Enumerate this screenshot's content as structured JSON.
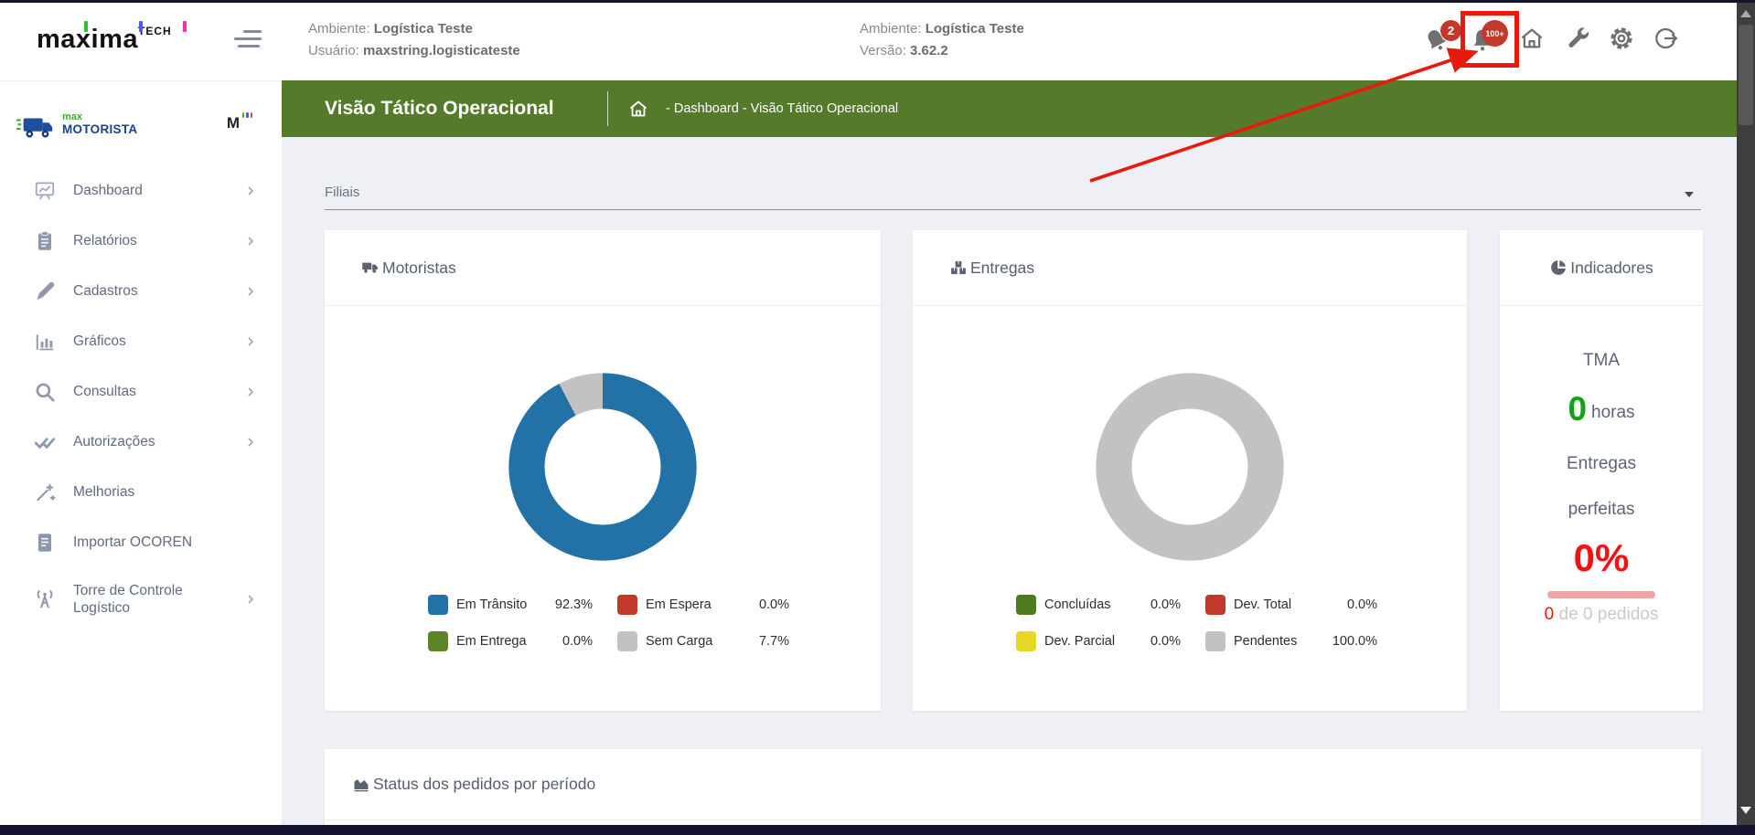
{
  "header": {
    "logo_text": "maxima",
    "logo_suffix": "TECH",
    "info_left": {
      "l1_label": "Ambiente:",
      "l1_value": "Logística Teste",
      "l2_label": "Usuário:",
      "l2_value": "maxstring.logisticateste"
    },
    "info_center": {
      "l1_label": "Ambiente:",
      "l1_value": "Logística Teste",
      "l2_label": "Versão:",
      "l2_value": "3.62.2"
    },
    "badge_bell1": "2",
    "badge_bell2": "100+"
  },
  "sidebar": {
    "brand_prefix": "max",
    "brand_name": "MOTORISTA",
    "brand_mini": "M",
    "items": [
      {
        "label": "Dashboard",
        "icon": "presentation-chart-icon",
        "chevron": true
      },
      {
        "label": "Relatórios",
        "icon": "clipboard-icon",
        "chevron": true
      },
      {
        "label": "Cadastros",
        "icon": "pencil-icon",
        "chevron": true
      },
      {
        "label": "Gráficos",
        "icon": "bar-chart-icon",
        "chevron": true
      },
      {
        "label": "Consultas",
        "icon": "search-icon",
        "chevron": true
      },
      {
        "label": "Autorizações",
        "icon": "double-check-icon",
        "chevron": true
      },
      {
        "label": "Melhorias",
        "icon": "magic-wand-icon",
        "chevron": false
      },
      {
        "label": "Importar OCOREN",
        "icon": "document-icon",
        "chevron": false
      },
      {
        "label": "Torre de Controle Logístico",
        "icon": "antenna-icon",
        "chevron": true
      }
    ]
  },
  "page_header": {
    "title": "Visão Tático Operacional",
    "breadcrumb": "- Dashboard - Visão Tático Operacional"
  },
  "filters": {
    "label": "Filiais"
  },
  "chart_data": [
    {
      "type": "pie",
      "subtype": "donut",
      "title": "Motoristas",
      "categories": [
        "Em Trânsito",
        "Em Espera",
        "Em Entrega",
        "Sem Carga"
      ],
      "values": [
        92.3,
        0.0,
        0.0,
        7.7
      ],
      "unit": "%",
      "colors": [
        "#2272a8",
        "#c0392b",
        "#5d8426",
        "#c2c2c2"
      ],
      "legend_position": "bottom",
      "start_angle": "top",
      "direction": "clockwise"
    },
    {
      "type": "pie",
      "subtype": "donut",
      "title": "Entregas",
      "categories": [
        "Concluídas",
        "Dev. Total",
        "Dev. Parcial",
        "Pendentes"
      ],
      "values": [
        0.0,
        0.0,
        0.0,
        100.0
      ],
      "unit": "%",
      "colors": [
        "#4e7a22",
        "#c0392b",
        "#e8d826",
        "#c2c2c2"
      ],
      "legend_position": "bottom",
      "start_angle": "top",
      "direction": "clockwise"
    }
  ],
  "cards": {
    "motoristas": {
      "title": "Motoristas",
      "legend": [
        {
          "label": "Em Trânsito",
          "value": "92.3%",
          "color": "#2272a8"
        },
        {
          "label": "Em Espera",
          "value": "0.0%",
          "color": "#c0392b"
        },
        {
          "label": "Em Entrega",
          "value": "0.0%",
          "color": "#5d8426"
        },
        {
          "label": "Sem Carga",
          "value": "7.7%",
          "color": "#c2c2c2"
        }
      ]
    },
    "entregas": {
      "title": "Entregas",
      "legend": [
        {
          "label": "Concluídas",
          "value": "0.0%",
          "color": "#4e7a22"
        },
        {
          "label": "Dev. Total",
          "value": "0.0%",
          "color": "#c0392b"
        },
        {
          "label": "Dev. Parcial",
          "value": "0.0%",
          "color": "#e8d826"
        },
        {
          "label": "Pendentes",
          "value": "100.0%",
          "color": "#c2c2c2"
        }
      ]
    },
    "indicadores": {
      "title": "Indicadores",
      "tma_label": "TMA",
      "tma_value": "0",
      "tma_unit": "horas",
      "perfect_line1": "Entregas",
      "perfect_line2": "perfeitas",
      "perfect_value": "0%",
      "orders_highlight": "0",
      "orders_rest": " de 0 pedidos"
    },
    "status": {
      "title": "Status dos pedidos por período"
    }
  },
  "colors": {
    "page_header_green": "#567a2c",
    "annotation_red": "#e8190d",
    "badge_red": "#c0392b",
    "tma_green": "#16a11b",
    "perfect_red": "#f31111",
    "content_bg": "#eef0f5"
  }
}
